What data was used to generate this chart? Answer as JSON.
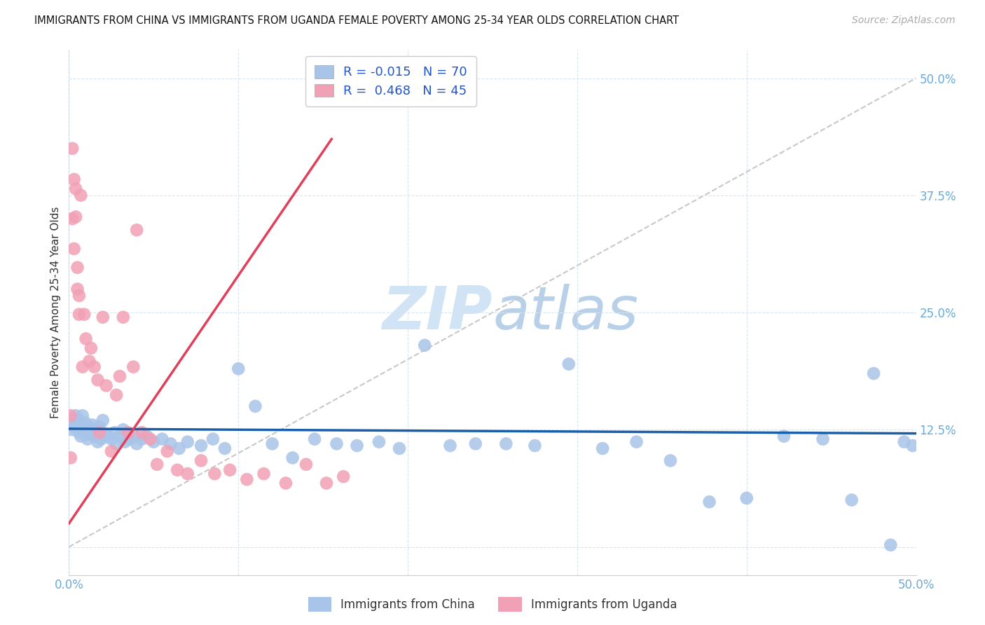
{
  "title": "IMMIGRANTS FROM CHINA VS IMMIGRANTS FROM UGANDA FEMALE POVERTY AMONG 25-34 YEAR OLDS CORRELATION CHART",
  "source": "Source: ZipAtlas.com",
  "ylabel": "Female Poverty Among 25-34 Year Olds",
  "legend_china_R": "-0.015",
  "legend_china_N": "70",
  "legend_uganda_R": "0.468",
  "legend_uganda_N": "45",
  "china_color": "#a8c4e8",
  "uganda_color": "#f2a0b5",
  "china_line_color": "#1a5faa",
  "uganda_line_color": "#e0405a",
  "ref_line_color": "#c8c8c8",
  "tick_color": "#6baad8",
  "label_color": "#333333",
  "watermark_color": "#d0e4f5",
  "background_color": "#ffffff",
  "china_x": [
    0.001,
    0.002,
    0.003,
    0.004,
    0.005,
    0.006,
    0.006,
    0.007,
    0.008,
    0.009,
    0.01,
    0.01,
    0.011,
    0.012,
    0.013,
    0.014,
    0.015,
    0.016,
    0.017,
    0.018,
    0.019,
    0.02,
    0.022,
    0.023,
    0.025,
    0.027,
    0.028,
    0.03,
    0.032,
    0.033,
    0.036,
    0.038,
    0.04,
    0.043,
    0.046,
    0.05,
    0.055,
    0.06,
    0.065,
    0.07,
    0.078,
    0.085,
    0.092,
    0.1,
    0.11,
    0.12,
    0.132,
    0.145,
    0.158,
    0.17,
    0.183,
    0.195,
    0.21,
    0.225,
    0.24,
    0.258,
    0.275,
    0.295,
    0.315,
    0.335,
    0.355,
    0.378,
    0.4,
    0.422,
    0.445,
    0.462,
    0.475,
    0.485,
    0.493,
    0.498
  ],
  "china_y": [
    0.13,
    0.125,
    0.128,
    0.14,
    0.132,
    0.122,
    0.135,
    0.118,
    0.14,
    0.125,
    0.12,
    0.132,
    0.115,
    0.128,
    0.122,
    0.13,
    0.118,
    0.125,
    0.112,
    0.128,
    0.115,
    0.135,
    0.12,
    0.118,
    0.115,
    0.122,
    0.11,
    0.118,
    0.125,
    0.112,
    0.115,
    0.12,
    0.11,
    0.115,
    0.118,
    0.112,
    0.115,
    0.11,
    0.105,
    0.112,
    0.108,
    0.115,
    0.105,
    0.19,
    0.15,
    0.11,
    0.095,
    0.115,
    0.11,
    0.108,
    0.112,
    0.105,
    0.215,
    0.108,
    0.11,
    0.11,
    0.108,
    0.195,
    0.105,
    0.112,
    0.092,
    0.048,
    0.052,
    0.118,
    0.115,
    0.05,
    0.185,
    0.002,
    0.112,
    0.108
  ],
  "uganda_x": [
    0.001,
    0.001,
    0.002,
    0.002,
    0.003,
    0.003,
    0.004,
    0.004,
    0.005,
    0.005,
    0.006,
    0.006,
    0.007,
    0.008,
    0.009,
    0.01,
    0.012,
    0.013,
    0.015,
    0.017,
    0.018,
    0.02,
    0.022,
    0.025,
    0.028,
    0.03,
    0.032,
    0.035,
    0.038,
    0.04,
    0.043,
    0.048,
    0.052,
    0.058,
    0.064,
    0.07,
    0.078,
    0.086,
    0.095,
    0.105,
    0.115,
    0.128,
    0.14,
    0.152,
    0.162
  ],
  "uganda_y": [
    0.14,
    0.095,
    0.35,
    0.425,
    0.392,
    0.318,
    0.382,
    0.352,
    0.298,
    0.275,
    0.268,
    0.248,
    0.375,
    0.192,
    0.248,
    0.222,
    0.198,
    0.212,
    0.192,
    0.178,
    0.122,
    0.245,
    0.172,
    0.102,
    0.162,
    0.182,
    0.245,
    0.122,
    0.192,
    0.338,
    0.122,
    0.115,
    0.088,
    0.102,
    0.082,
    0.078,
    0.092,
    0.078,
    0.082,
    0.072,
    0.078,
    0.068,
    0.088,
    0.068,
    0.075
  ],
  "china_line_x": [
    0.0,
    0.5
  ],
  "china_line_y": [
    0.126,
    0.121
  ],
  "uganda_line_x": [
    0.0,
    0.155
  ],
  "uganda_line_y": [
    0.025,
    0.435
  ],
  "ref_line_x": [
    0.0,
    0.5
  ],
  "ref_line_y": [
    0.0,
    0.5
  ],
  "xlim": [
    0.0,
    0.5
  ],
  "ylim": [
    -0.03,
    0.53
  ],
  "yticks": [
    0.0,
    0.125,
    0.25,
    0.375,
    0.5
  ],
  "ytick_labels": [
    "",
    "12.5%",
    "25.0%",
    "37.5%",
    "50.0%"
  ],
  "xtick_left_label": "0.0%",
  "xtick_right_label": "50.0%"
}
